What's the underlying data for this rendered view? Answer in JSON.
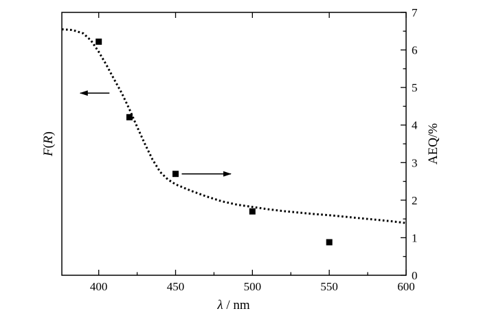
{
  "chart_data": {
    "type": "scatter",
    "title": "",
    "xlabel": "λ / nm",
    "xlabel_symbol": "λ",
    "xlabel_unit": " / nm",
    "ylabel_left": "F(R)",
    "ylabel_left_parts": [
      "F",
      "(",
      "R",
      ")"
    ],
    "ylabel_right": "AEQ/%",
    "xlim": [
      376,
      600
    ],
    "ylim_right": [
      0,
      7
    ],
    "x_ticks": [
      400,
      450,
      500,
      550,
      600
    ],
    "y_right_ticks": [
      0,
      1,
      2,
      3,
      4,
      5,
      6,
      7
    ],
    "grid": false,
    "legend": "none",
    "series": [
      {
        "kind": "line",
        "style": "dotted",
        "axis": "left",
        "x": [
          376,
          383,
          390,
          395,
          400,
          405,
          410,
          415,
          420,
          425,
          430,
          435,
          440,
          445,
          450,
          460,
          470,
          480,
          490,
          500,
          510,
          520,
          530,
          540,
          550,
          560,
          570,
          580,
          590,
          600
        ],
        "y": [
          6.55,
          6.53,
          6.44,
          6.25,
          5.95,
          5.6,
          5.22,
          4.85,
          4.42,
          3.95,
          3.5,
          3.08,
          2.75,
          2.55,
          2.42,
          2.25,
          2.1,
          1.97,
          1.88,
          1.82,
          1.76,
          1.71,
          1.67,
          1.63,
          1.6,
          1.56,
          1.52,
          1.48,
          1.44,
          1.39
        ]
      },
      {
        "kind": "scatter",
        "marker": "square",
        "axis": "right",
        "x": [
          400,
          420,
          450,
          500,
          550
        ],
        "y": [
          6.22,
          4.21,
          2.7,
          1.7,
          0.88
        ]
      }
    ],
    "annotations": [
      {
        "type": "arrow",
        "direction": "left",
        "points_to": "left-axis",
        "x_from": 407,
        "x_to": 388,
        "y": 4.85
      },
      {
        "type": "arrow",
        "direction": "right",
        "points_to": "right-axis",
        "x_from": 454,
        "x_to": 486,
        "y": 2.7
      }
    ],
    "colors": {
      "line": "#000000",
      "marker": "#000000",
      "axis": "#000000"
    }
  }
}
